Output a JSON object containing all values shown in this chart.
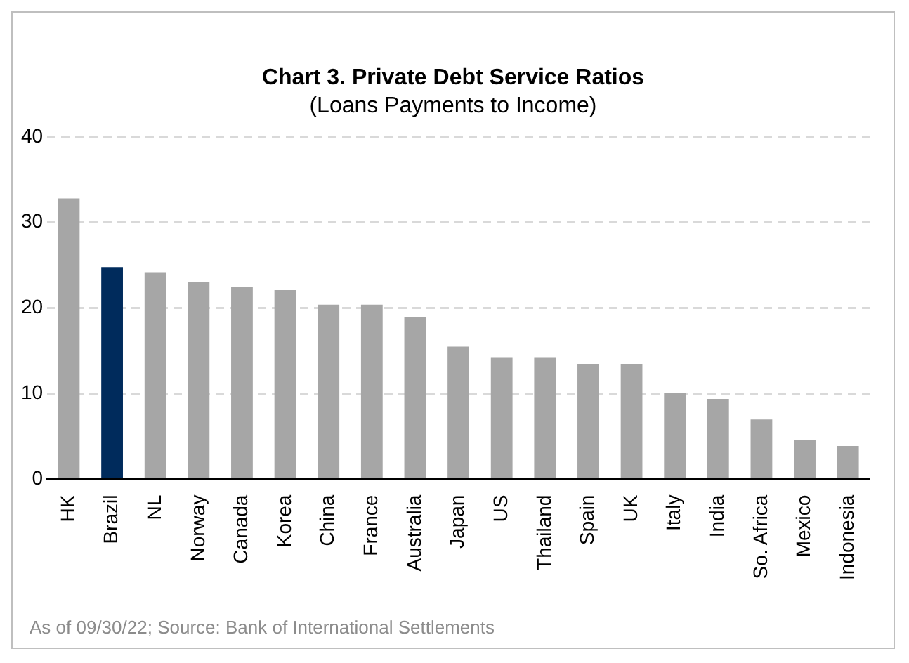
{
  "chart_data": {
    "type": "bar",
    "title": "Chart 3. Private Debt Service Ratios",
    "subtitle": "(Loans Payments to Income)",
    "categories": [
      "HK",
      "Brazil",
      "NL",
      "Norway",
      "Canada",
      "Korea",
      "China",
      "France",
      "Australia",
      "Japan",
      "US",
      "Thailand",
      "Spain",
      "UK",
      "Italy",
      "India",
      "So. Africa",
      "Mexico",
      "Indonesia"
    ],
    "values": [
      32.8,
      24.8,
      24.2,
      23.1,
      22.5,
      22.1,
      20.4,
      20.4,
      19.0,
      15.5,
      14.2,
      14.2,
      13.5,
      13.5,
      10.1,
      9.4,
      7.0,
      4.6,
      3.9
    ],
    "colors": [
      "#a6a6a6",
      "#002b5c",
      "#a6a6a6",
      "#a6a6a6",
      "#a6a6a6",
      "#a6a6a6",
      "#a6a6a6",
      "#a6a6a6",
      "#a6a6a6",
      "#a6a6a6",
      "#a6a6a6",
      "#a6a6a6",
      "#a6a6a6",
      "#a6a6a6",
      "#a6a6a6",
      "#a6a6a6",
      "#a6a6a6",
      "#a6a6a6",
      "#a6a6a6"
    ],
    "ylim": [
      0,
      40
    ],
    "yticks": [
      0,
      10,
      20,
      30,
      40
    ],
    "grid": "y",
    "legend": false,
    "annotations": [
      "As of 09/30/22; Source: Bank of International Settlements"
    ]
  }
}
